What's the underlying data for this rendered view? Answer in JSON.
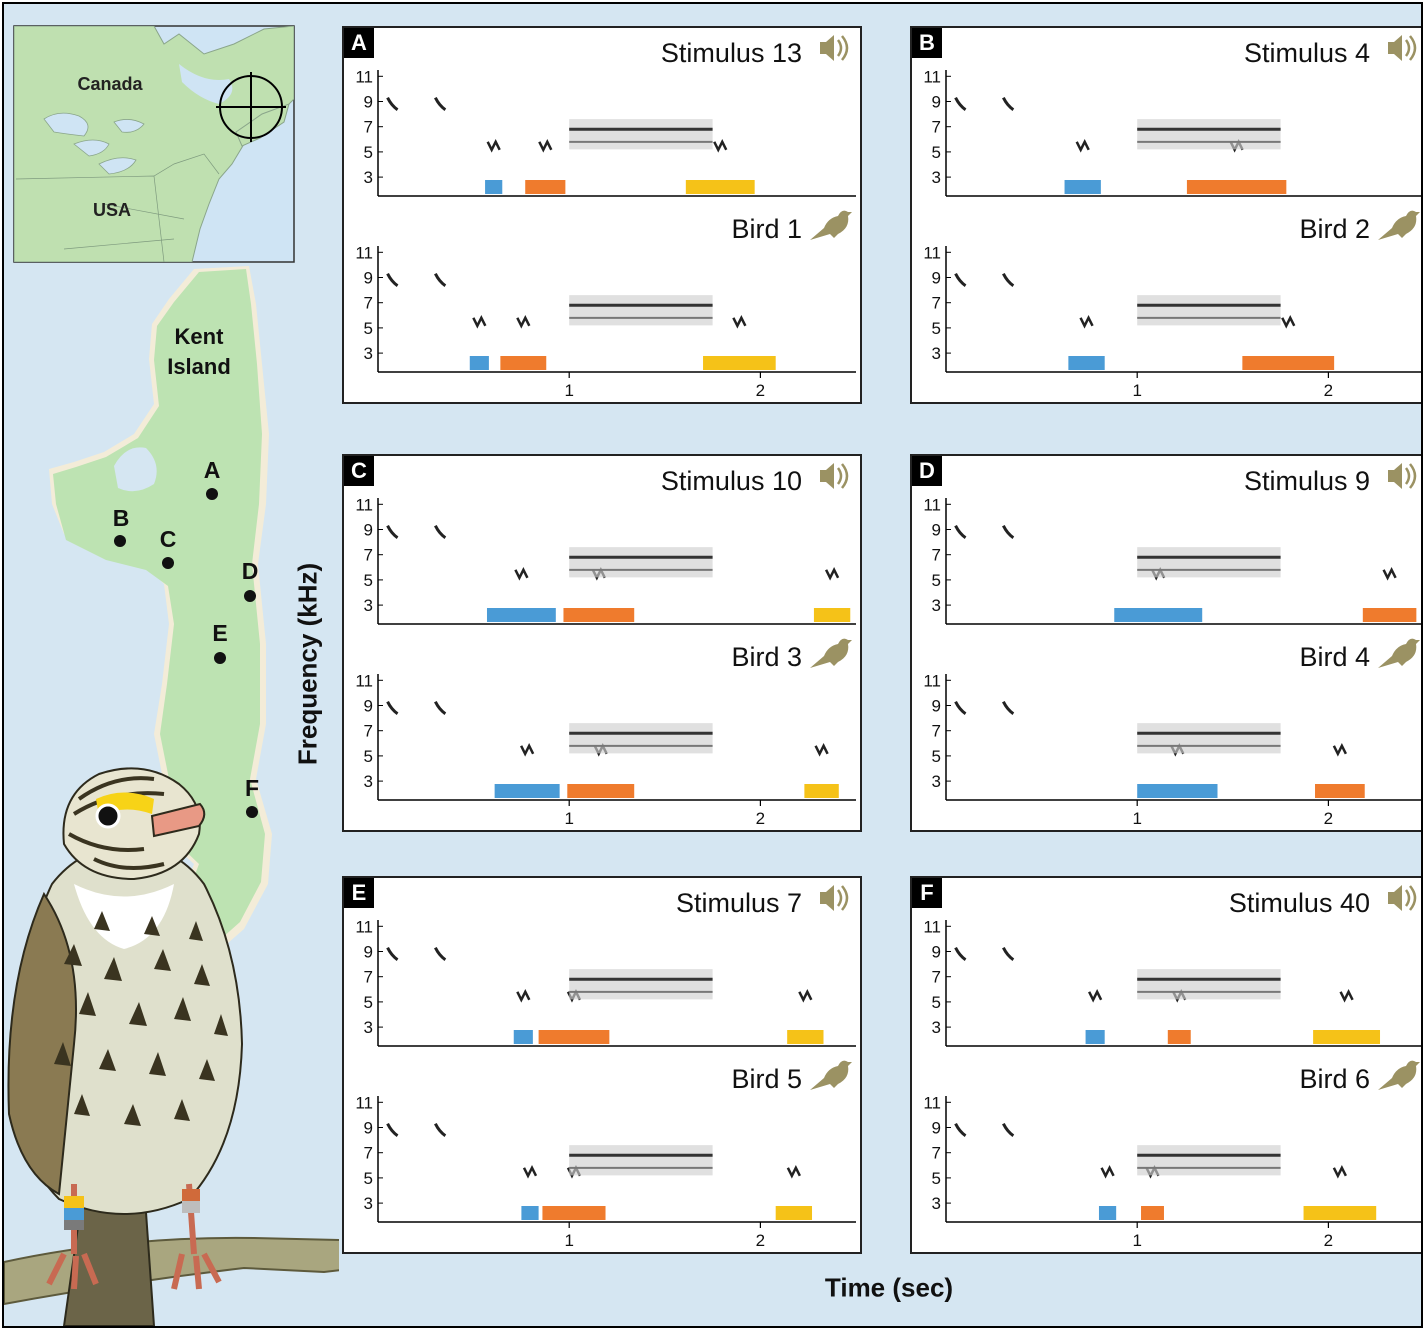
{
  "map": {
    "country_labels": [
      "Canada",
      "USA"
    ],
    "island_label_line1": "Kent",
    "island_label_line2": "Island",
    "sites": [
      "A",
      "B",
      "C",
      "D",
      "E",
      "F"
    ]
  },
  "axes": {
    "ylabel": "Frequency (kHz)",
    "xlabel": "Time (sec)",
    "frequency_ticks": [
      "11",
      "9",
      "7",
      "5",
      "3"
    ],
    "time_ticks": [
      "1",
      "2"
    ]
  },
  "colors": {
    "blue_phrase": "#4a9bd6",
    "orange_phrase": "#ef7b2d",
    "yellow_phrase": "#f5c218",
    "icon_color": "#9b9263",
    "ocean": "#d5e6f2",
    "land": "#bfe0b0",
    "island": "#bde3b2"
  },
  "panels": [
    {
      "letter": "A",
      "top": {
        "label": "Stimulus 13",
        "icon": "speaker-icon"
      },
      "bottom": {
        "label": "Bird 1",
        "icon": "bird-icon"
      },
      "top_phrases": [
        {
          "color": "blue",
          "start": 0.56,
          "end": 0.65
        },
        {
          "color": "orange",
          "start": 0.77,
          "end": 0.98
        },
        {
          "color": "yellow",
          "start": 1.61,
          "end": 1.97
        }
      ],
      "bottom_phrases": [
        {
          "color": "blue",
          "start": 0.48,
          "end": 0.58
        },
        {
          "color": "orange",
          "start": 0.64,
          "end": 0.88
        },
        {
          "color": "yellow",
          "start": 1.7,
          "end": 2.08
        }
      ]
    },
    {
      "letter": "B",
      "top": {
        "label": "Stimulus 4",
        "icon": "speaker-icon"
      },
      "bottom": {
        "label": "Bird 2",
        "icon": "bird-icon"
      },
      "top_phrases": [
        {
          "color": "blue",
          "start": 0.62,
          "end": 0.81
        },
        {
          "color": "orange",
          "start": 1.26,
          "end": 1.78
        }
      ],
      "bottom_phrases": [
        {
          "color": "blue",
          "start": 0.64,
          "end": 0.83
        },
        {
          "color": "orange",
          "start": 1.55,
          "end": 2.03
        }
      ]
    },
    {
      "letter": "C",
      "top": {
        "label": "Stimulus 10",
        "icon": "speaker-icon"
      },
      "bottom": {
        "label": "Bird 3",
        "icon": "bird-icon"
      },
      "top_phrases": [
        {
          "color": "blue",
          "start": 0.57,
          "end": 0.93
        },
        {
          "color": "orange",
          "start": 0.97,
          "end": 1.34
        },
        {
          "color": "yellow",
          "start": 2.28,
          "end": 2.47
        }
      ],
      "bottom_phrases": [
        {
          "color": "blue",
          "start": 0.61,
          "end": 0.95
        },
        {
          "color": "orange",
          "start": 0.99,
          "end": 1.34
        },
        {
          "color": "yellow",
          "start": 2.23,
          "end": 2.41
        }
      ]
    },
    {
      "letter": "D",
      "top": {
        "label": "Stimulus 9",
        "icon": "speaker-icon"
      },
      "bottom": {
        "label": "Bird 4",
        "icon": "bird-icon"
      },
      "top_phrases": [
        {
          "color": "blue",
          "start": 0.88,
          "end": 1.34
        },
        {
          "color": "orange",
          "start": 2.18,
          "end": 2.46
        }
      ],
      "bottom_phrases": [
        {
          "color": "blue",
          "start": 1.0,
          "end": 1.42
        },
        {
          "color": "orange",
          "start": 1.93,
          "end": 2.19
        }
      ]
    },
    {
      "letter": "E",
      "top": {
        "label": "Stimulus 7",
        "icon": "speaker-icon"
      },
      "bottom": {
        "label": "Bird 5",
        "icon": "bird-icon"
      },
      "top_phrases": [
        {
          "color": "blue",
          "start": 0.71,
          "end": 0.81
        },
        {
          "color": "orange",
          "start": 0.84,
          "end": 1.21
        },
        {
          "color": "yellow",
          "start": 2.14,
          "end": 2.33
        }
      ],
      "bottom_phrases": [
        {
          "color": "blue",
          "start": 0.75,
          "end": 0.84
        },
        {
          "color": "orange",
          "start": 0.86,
          "end": 1.19
        },
        {
          "color": "yellow",
          "start": 2.08,
          "end": 2.27
        }
      ]
    },
    {
      "letter": "F",
      "top": {
        "label": "Stimulus 40",
        "icon": "speaker-icon"
      },
      "bottom": {
        "label": "Bird 6",
        "icon": "bird-icon"
      },
      "top_phrases": [
        {
          "color": "blue",
          "start": 0.73,
          "end": 0.83
        },
        {
          "color": "orange",
          "start": 1.16,
          "end": 1.28
        },
        {
          "color": "yellow",
          "start": 1.92,
          "end": 2.27
        }
      ],
      "bottom_phrases": [
        {
          "color": "blue",
          "start": 0.8,
          "end": 0.89
        },
        {
          "color": "orange",
          "start": 1.02,
          "end": 1.14
        },
        {
          "color": "yellow",
          "start": 1.87,
          "end": 2.25
        }
      ]
    }
  ]
}
